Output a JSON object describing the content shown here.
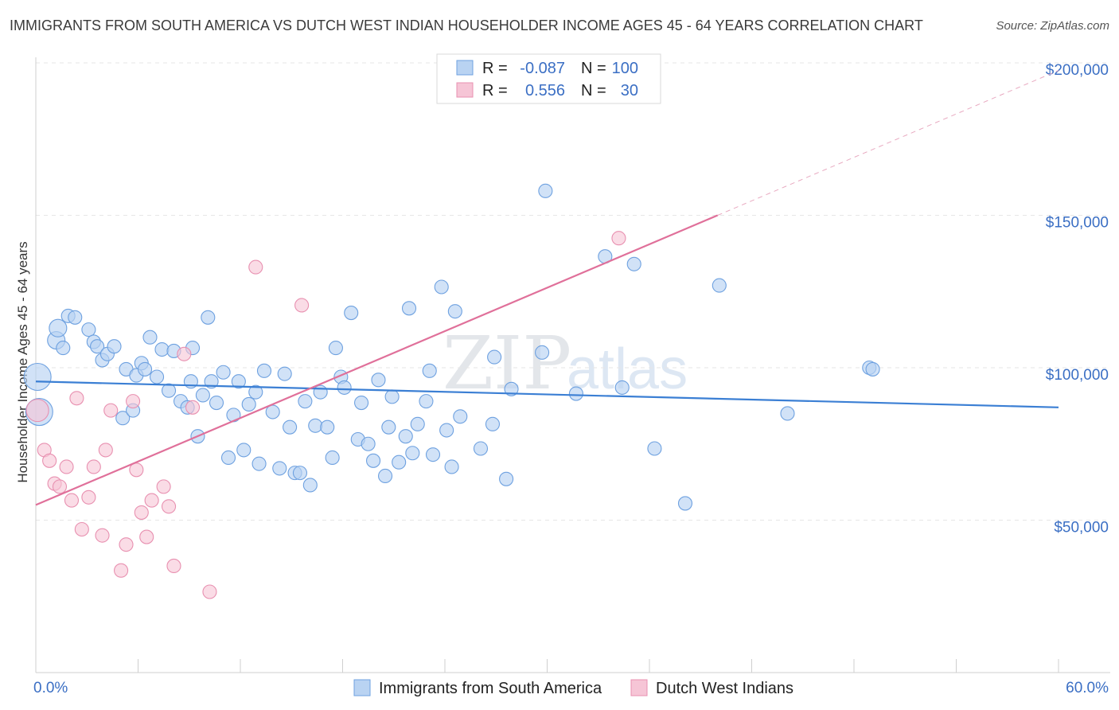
{
  "title": "IMMIGRANTS FROM SOUTH AMERICA VS DUTCH WEST INDIAN HOUSEHOLDER INCOME AGES 45 - 64 YEARS CORRELATION CHART",
  "source": "Source: ZipAtlas.com",
  "watermark": {
    "zip": "ZIP",
    "atlas": "atlas"
  },
  "colors": {
    "blue": "#3b7fd4",
    "blue_fill": "#b9d3f2",
    "pink": "#e0709a",
    "pink_fill": "#f6c5d6",
    "axis_label": "#3b6fc4"
  },
  "chart_data": {
    "type": "scatter",
    "title": "IMMIGRANTS FROM SOUTH AMERICA VS DUTCH WEST INDIAN HOUSEHOLDER INCOME AGES 45 - 64 YEARS CORRELATION CHART",
    "xlabel": "",
    "ylabel": "Householder Income Ages 45 - 64 years",
    "xlim": [
      0,
      60
    ],
    "ylim": [
      0,
      200000
    ],
    "x_tick_labels": [
      "0.0%",
      "60.0%"
    ],
    "y_ticks": [
      50000,
      100000,
      150000,
      200000
    ],
    "y_tick_labels": [
      "$50,000",
      "$100,000",
      "$150,000",
      "$200,000"
    ],
    "legend_stats": [
      {
        "r_label": "R =",
        "r": "-0.087",
        "n_label": "N =",
        "n": "100"
      },
      {
        "r_label": "R =",
        "r": "0.556",
        "n_label": "N =",
        "n": "30"
      }
    ],
    "series": [
      {
        "name": "Immigrants from South America",
        "r": -0.087,
        "n": 100,
        "trend": {
          "x": [
            0,
            60
          ],
          "y": [
            95500,
            87000
          ]
        },
        "points": [
          [
            0.1,
            97000
          ],
          [
            0.2,
            85500
          ],
          [
            1.2,
            109000
          ],
          [
            1.3,
            113000
          ],
          [
            1.6,
            106500
          ],
          [
            1.9,
            117000
          ],
          [
            2.3,
            116500
          ],
          [
            3.1,
            112500
          ],
          [
            3.4,
            108500
          ],
          [
            3.6,
            107000
          ],
          [
            3.9,
            102500
          ],
          [
            4.2,
            104500
          ],
          [
            4.6,
            107000
          ],
          [
            5.1,
            83500
          ],
          [
            5.3,
            99500
          ],
          [
            5.7,
            86000
          ],
          [
            5.9,
            97500
          ],
          [
            6.2,
            101500
          ],
          [
            6.4,
            99500
          ],
          [
            6.7,
            110000
          ],
          [
            7.1,
            97000
          ],
          [
            7.4,
            106000
          ],
          [
            7.8,
            92500
          ],
          [
            8.1,
            105500
          ],
          [
            8.5,
            89000
          ],
          [
            8.9,
            87000
          ],
          [
            9.1,
            95500
          ],
          [
            9.2,
            106500
          ],
          [
            9.5,
            77500
          ],
          [
            9.8,
            91000
          ],
          [
            10.1,
            116500
          ],
          [
            10.3,
            95500
          ],
          [
            10.6,
            88500
          ],
          [
            11.0,
            98500
          ],
          [
            11.3,
            70500
          ],
          [
            11.6,
            84500
          ],
          [
            11.9,
            95500
          ],
          [
            12.2,
            73000
          ],
          [
            12.5,
            88000
          ],
          [
            12.9,
            92000
          ],
          [
            13.1,
            68500
          ],
          [
            13.4,
            99000
          ],
          [
            13.9,
            85500
          ],
          [
            14.3,
            67000
          ],
          [
            14.6,
            98000
          ],
          [
            14.9,
            80500
          ],
          [
            15.2,
            65500
          ],
          [
            15.5,
            65500
          ],
          [
            15.8,
            89000
          ],
          [
            16.1,
            61500
          ],
          [
            16.4,
            81000
          ],
          [
            16.7,
            92000
          ],
          [
            17.1,
            80500
          ],
          [
            17.4,
            70500
          ],
          [
            17.6,
            106500
          ],
          [
            17.9,
            97000
          ],
          [
            18.1,
            93500
          ],
          [
            18.5,
            118000
          ],
          [
            18.9,
            76500
          ],
          [
            19.1,
            88500
          ],
          [
            19.5,
            75000
          ],
          [
            19.8,
            69500
          ],
          [
            20.1,
            96000
          ],
          [
            20.5,
            64500
          ],
          [
            20.7,
            80500
          ],
          [
            20.9,
            90500
          ],
          [
            21.3,
            69000
          ],
          [
            21.7,
            77500
          ],
          [
            21.9,
            119500
          ],
          [
            22.1,
            72000
          ],
          [
            22.4,
            81500
          ],
          [
            22.9,
            89000
          ],
          [
            23.1,
            99000
          ],
          [
            23.3,
            71500
          ],
          [
            23.8,
            126500
          ],
          [
            24.1,
            79500
          ],
          [
            24.4,
            67500
          ],
          [
            24.6,
            118500
          ],
          [
            24.9,
            84000
          ],
          [
            26.1,
            73500
          ],
          [
            26.8,
            81500
          ],
          [
            26.9,
            103500
          ],
          [
            27.6,
            63500
          ],
          [
            27.9,
            93000
          ],
          [
            29.7,
            105000
          ],
          [
            29.9,
            158000
          ],
          [
            31.7,
            91500
          ],
          [
            33.4,
            136500
          ],
          [
            34.4,
            93500
          ],
          [
            35.1,
            134000
          ],
          [
            36.3,
            73500
          ],
          [
            38.1,
            55500
          ],
          [
            40.1,
            127000
          ],
          [
            44.1,
            85000
          ],
          [
            48.9,
            100000
          ],
          [
            49.1,
            99500
          ]
        ],
        "large_points": [
          [
            0.1,
            97000
          ],
          [
            0.2,
            85500
          ],
          [
            1.2,
            109000
          ],
          [
            1.3,
            113000
          ]
        ]
      },
      {
        "name": "Dutch West Indians",
        "r": 0.556,
        "n": 30,
        "trend": {
          "x": [
            0,
            40
          ],
          "y": [
            55000,
            150000
          ]
        },
        "trend_dashed": {
          "x": [
            40,
            60
          ],
          "y": [
            150000,
            197500
          ]
        },
        "points": [
          [
            0.1,
            86000
          ],
          [
            0.5,
            73000
          ],
          [
            0.8,
            69500
          ],
          [
            1.1,
            62000
          ],
          [
            1.4,
            61000
          ],
          [
            1.8,
            67500
          ],
          [
            2.1,
            56500
          ],
          [
            2.4,
            90000
          ],
          [
            2.7,
            47000
          ],
          [
            3.1,
            57500
          ],
          [
            3.4,
            67500
          ],
          [
            3.9,
            45000
          ],
          [
            4.1,
            73000
          ],
          [
            4.4,
            86000
          ],
          [
            5.0,
            33500
          ],
          [
            5.3,
            42000
          ],
          [
            5.7,
            89000
          ],
          [
            5.9,
            66500
          ],
          [
            6.2,
            52500
          ],
          [
            6.5,
            44500
          ],
          [
            6.8,
            56500
          ],
          [
            7.5,
            61000
          ],
          [
            7.8,
            54500
          ],
          [
            8.1,
            35000
          ],
          [
            8.7,
            104500
          ],
          [
            9.2,
            87000
          ],
          [
            10.2,
            26500
          ],
          [
            12.9,
            133000
          ],
          [
            15.6,
            120500
          ],
          [
            34.2,
            142500
          ]
        ]
      }
    ]
  },
  "legend": {
    "series1": "Immigrants from South America",
    "series2": "Dutch West Indians"
  }
}
